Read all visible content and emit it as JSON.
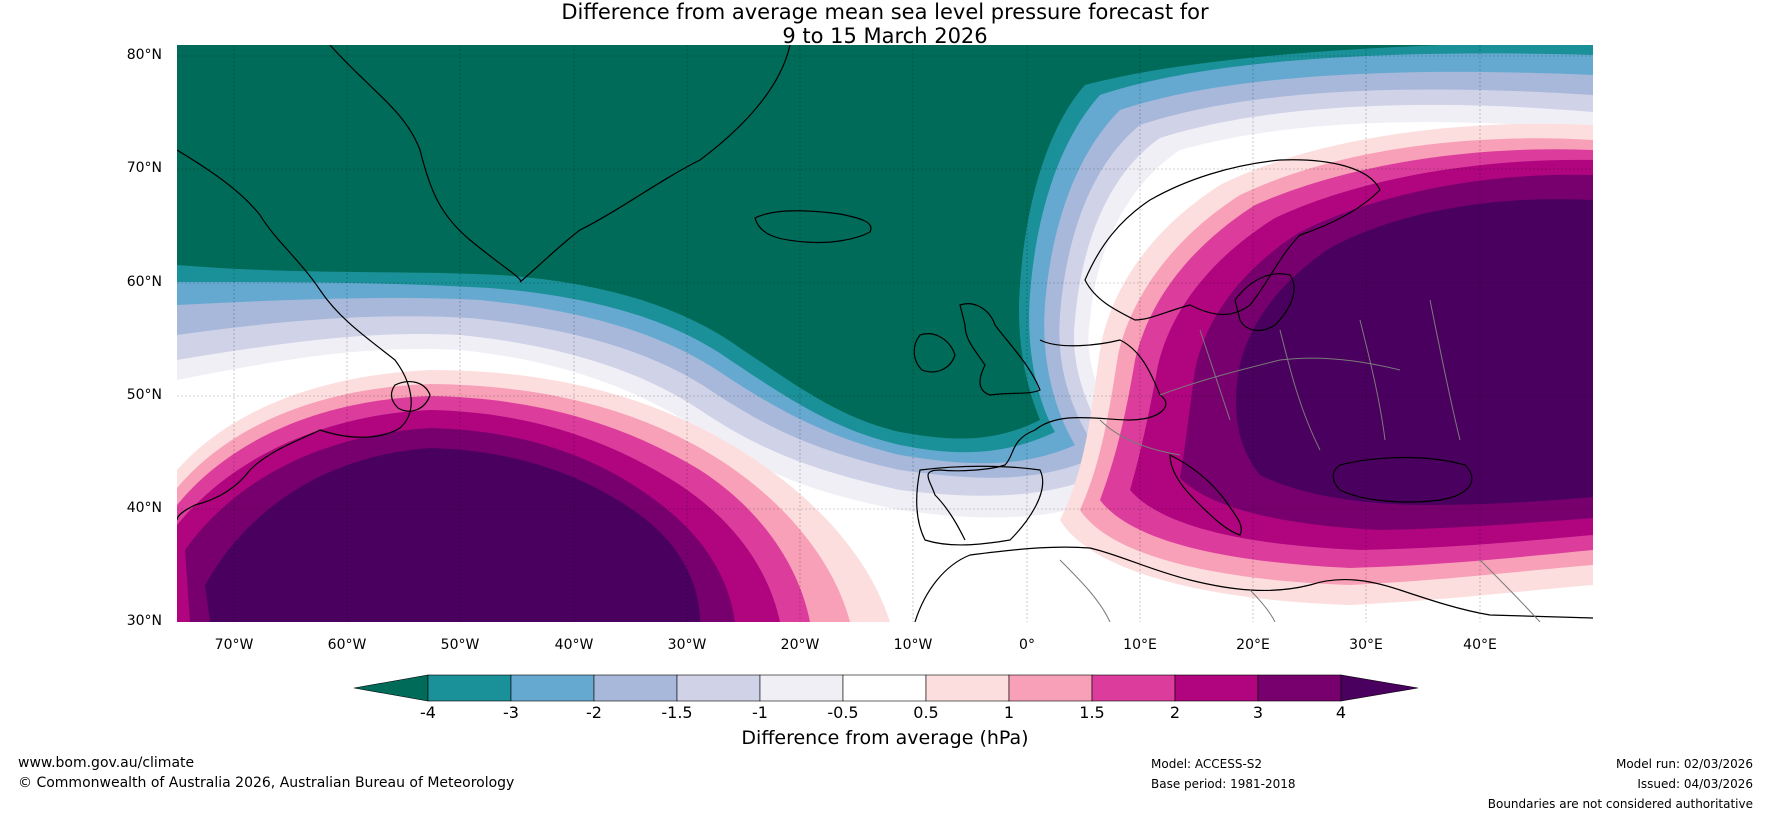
{
  "title": {
    "line1": "Difference from average mean sea level pressure forecast for",
    "line2": "9 to 15 March 2026"
  },
  "map": {
    "region": "North Atlantic and Europe",
    "lat_labels": [
      "80°N",
      "70°N",
      "60°N",
      "50°N",
      "40°N",
      "30°N"
    ],
    "lon_labels": [
      "70°W",
      "60°W",
      "50°W",
      "40°W",
      "30°W",
      "20°W",
      "10°W",
      "0°",
      "10°E",
      "20°E",
      "30°E",
      "40°E"
    ],
    "lat_range": [
      30,
      81
    ],
    "lon_range": [
      -75,
      50
    ]
  },
  "colorbar": {
    "ticks": [
      "-4",
      "-3",
      "-2",
      "-1.5",
      "-1",
      "-0.5",
      "0.5",
      "1",
      "1.5",
      "2",
      "3",
      "4"
    ],
    "colors": [
      "#006b58",
      "#1a9098",
      "#66a9d0",
      "#a8b8da",
      "#d0d2e7",
      "#f1eff6",
      "#ffffff",
      "#fddede",
      "#f8a0b8",
      "#dc3d9c",
      "#b0057e",
      "#78006e",
      "#4a005e"
    ],
    "label": "Difference from average (hPa)"
  },
  "footer": {
    "website": "www.bom.gov.au/climate",
    "copyright": "© Commonwealth of Australia 2026, Australian Bureau of Meteorology",
    "model": "Model: ACCESS-S2",
    "base_period": "Base period: 1981-2018",
    "model_run": "Model run: 02/03/2026",
    "issued": "Issued: 04/03/2026",
    "disclaimer": "Boundaries are not considered authoritative"
  }
}
